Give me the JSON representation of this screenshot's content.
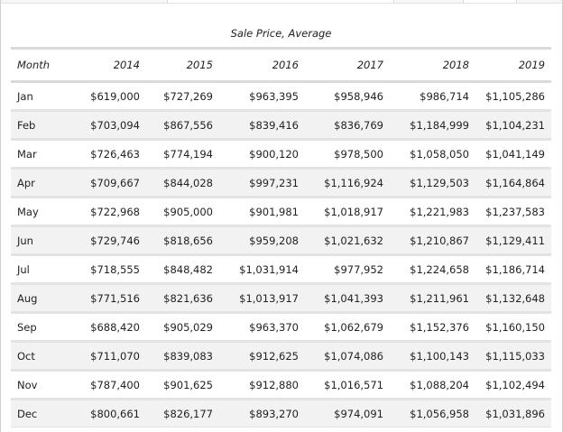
{
  "table": {
    "title": "Sale Price, Average",
    "columns": [
      "Month",
      "2014",
      "2015",
      "2016",
      "2017",
      "2018",
      "2019"
    ],
    "rows": [
      {
        "month": "Jan",
        "values": [
          "$619,000",
          "$727,269",
          "$963,395",
          "$958,946",
          "$986,714",
          "$1,105,286"
        ]
      },
      {
        "month": "Feb",
        "values": [
          "$703,094",
          "$867,556",
          "$839,416",
          "$836,769",
          "$1,184,999",
          "$1,104,231"
        ]
      },
      {
        "month": "Mar",
        "values": [
          "$726,463",
          "$774,194",
          "$900,120",
          "$978,500",
          "$1,058,050",
          "$1,041,149"
        ]
      },
      {
        "month": "Apr",
        "values": [
          "$709,667",
          "$844,028",
          "$997,231",
          "$1,116,924",
          "$1,129,503",
          "$1,164,864"
        ]
      },
      {
        "month": "May",
        "values": [
          "$722,968",
          "$905,000",
          "$901,981",
          "$1,018,917",
          "$1,221,983",
          "$1,237,583"
        ]
      },
      {
        "month": "Jun",
        "values": [
          "$729,746",
          "$818,656",
          "$959,208",
          "$1,021,632",
          "$1,210,867",
          "$1,129,411"
        ]
      },
      {
        "month": "Jul",
        "values": [
          "$718,555",
          "$848,482",
          "$1,031,914",
          "$977,952",
          "$1,224,658",
          "$1,186,714"
        ]
      },
      {
        "month": "Aug",
        "values": [
          "$771,516",
          "$821,636",
          "$1,013,917",
          "$1,041,393",
          "$1,211,961",
          "$1,132,648"
        ]
      },
      {
        "month": "Sep",
        "values": [
          "$688,420",
          "$905,029",
          "$963,370",
          "$1,062,679",
          "$1,152,376",
          "$1,160,150"
        ]
      },
      {
        "month": "Oct",
        "values": [
          "$711,070",
          "$839,083",
          "$912,625",
          "$1,074,086",
          "$1,100,143",
          "$1,115,033"
        ]
      },
      {
        "month": "Nov",
        "values": [
          "$787,400",
          "$901,625",
          "$912,880",
          "$1,016,571",
          "$1,088,204",
          "$1,102,494"
        ]
      },
      {
        "month": "Dec",
        "values": [
          "$800,661",
          "$826,177",
          "$893,270",
          "$974,091",
          "$1,056,958",
          "$1,031,896"
        ]
      }
    ]
  }
}
